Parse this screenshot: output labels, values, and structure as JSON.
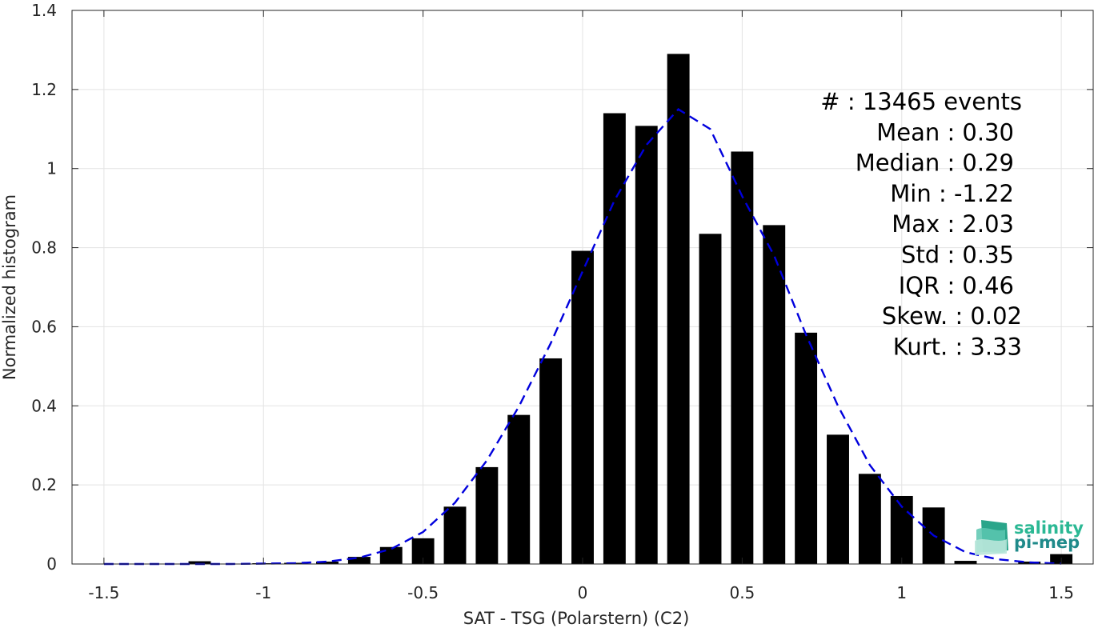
{
  "chart_data": {
    "type": "bar",
    "xlabel": "SAT - TSG (Polarstern) (C2)",
    "ylabel": "Normalized histogram",
    "xlim": [
      -1.6,
      1.6
    ],
    "ylim": [
      0,
      1.4
    ],
    "xticks": [
      -1.5,
      -1,
      -0.5,
      0,
      0.5,
      1,
      1.5
    ],
    "xtick_labels": [
      "-1.5",
      "-1",
      "-0.5",
      "0",
      "0.5",
      "1",
      "1.5"
    ],
    "yticks": [
      0,
      0.2,
      0.4,
      0.6,
      0.8,
      1,
      1.2,
      1.4
    ],
    "ytick_labels": [
      "0",
      "0.2",
      "0.4",
      "0.6",
      "0.8",
      "1",
      "1.2",
      "1.4"
    ],
    "grid": true,
    "bar_width": 0.07,
    "bars": {
      "x": [
        -1.2,
        -1.0,
        -0.9,
        -0.8,
        -0.7,
        -0.6,
        -0.5,
        -0.4,
        -0.3,
        -0.2,
        -0.1,
        0.0,
        0.1,
        0.2,
        0.3,
        0.4,
        0.5,
        0.6,
        0.7,
        0.8,
        0.9,
        1.0,
        1.1,
        1.2,
        1.4,
        1.5
      ],
      "values": [
        0.007,
        0.002,
        0.003,
        0.006,
        0.018,
        0.043,
        0.065,
        0.145,
        0.245,
        0.377,
        0.52,
        0.792,
        1.14,
        1.108,
        1.29,
        0.835,
        1.043,
        0.857,
        0.585,
        0.327,
        0.228,
        0.172,
        0.143,
        0.008,
        0.006,
        0.025
      ],
      "color": "#000000"
    },
    "fit_curve": {
      "style": "dashed",
      "color": "#0000dd",
      "x": [
        -1.5,
        -1.4,
        -1.3,
        -1.2,
        -1.1,
        -1.0,
        -0.9,
        -0.8,
        -0.7,
        -0.6,
        -0.5,
        -0.4,
        -0.3,
        -0.2,
        -0.1,
        0.0,
        0.1,
        0.2,
        0.3,
        0.4,
        0.5,
        0.6,
        0.7,
        0.8,
        0.9,
        1.0,
        1.1,
        1.2,
        1.3,
        1.4,
        1.5
      ],
      "y": [
        0.0,
        0.0,
        0.0,
        0.0,
        0.0,
        0.001,
        0.002,
        0.006,
        0.016,
        0.038,
        0.081,
        0.155,
        0.262,
        0.398,
        0.558,
        0.74,
        0.92,
        1.06,
        1.15,
        1.1,
        0.93,
        0.78,
        0.58,
        0.4,
        0.25,
        0.145,
        0.072,
        0.03,
        0.012,
        0.004,
        0.001
      ]
    },
    "stats": [
      {
        "label": "#",
        "value": ": 13465 events"
      },
      {
        "label": "Mean",
        "value": ": 0.30"
      },
      {
        "label": "Median",
        "value": ": 0.29"
      },
      {
        "label": "Min",
        "value": ": -1.22"
      },
      {
        "label": "Max",
        "value": ": 2.03"
      },
      {
        "label": "Std",
        "value": ": 0.35"
      },
      {
        "label": "IQR",
        "value": ": 0.46"
      },
      {
        "label": "Skew.",
        "value": ": 0.02"
      },
      {
        "label": "Kurt.",
        "value": ": 3.33"
      }
    ]
  },
  "logo": {
    "line1": "salinity",
    "line2": "pi-mep",
    "color1": "#2bb894",
    "color2": "#1f8a8a"
  }
}
